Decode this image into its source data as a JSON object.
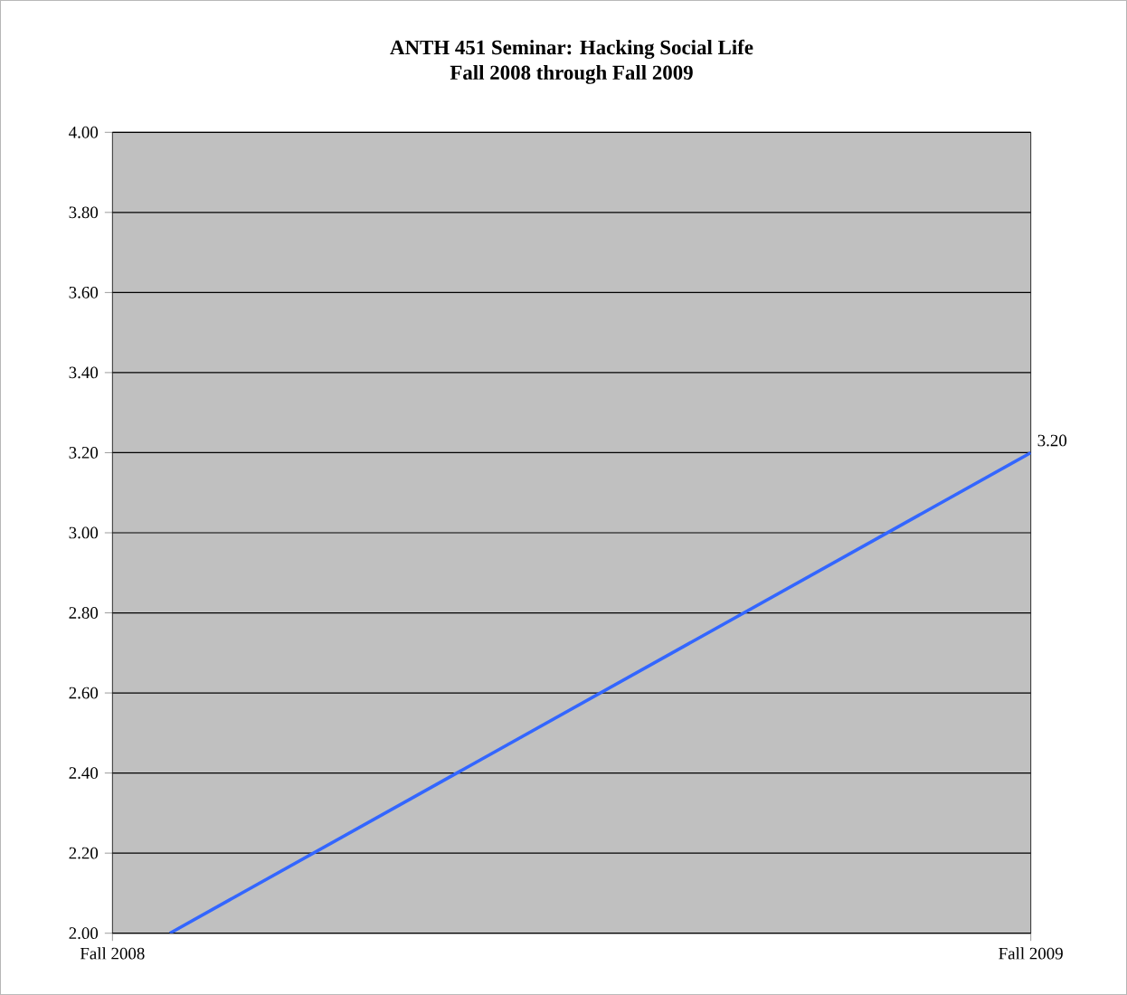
{
  "chart_data": {
    "type": "line",
    "title": "ANTH 451 Seminar: Hacking Social Life",
    "subtitle": "Fall 2008 through Fall 2009",
    "categories": [
      "Fall 2008",
      null,
      null,
      null,
      null,
      null,
      null,
      null,
      null,
      null,
      null,
      null,
      null,
      null,
      null,
      null,
      "Fall 2009"
    ],
    "ylim": [
      2,
      4
    ],
    "yticks": [
      {
        "value": 2,
        "label": "2.00"
      },
      {
        "value": 2.2,
        "label": "2.20"
      },
      {
        "value": 2.4,
        "label": "2.40"
      },
      {
        "value": 2.6,
        "label": "2.60"
      },
      {
        "value": 2.8,
        "label": "2.80"
      },
      {
        "value": 3,
        "label": "3.00"
      },
      {
        "value": 3.2,
        "label": "3.20"
      },
      {
        "value": 3.4,
        "label": "3.40"
      },
      {
        "value": 3.6,
        "label": "3.60"
      },
      {
        "value": 3.8,
        "label": "3.80"
      },
      {
        "value": 4,
        "label": "4.00"
      }
    ],
    "grid": "y",
    "series": [
      {
        "color": "#3366ff",
        "values": [
          null,
          2.0,
          null,
          null,
          null,
          null,
          null,
          null,
          null,
          null,
          null,
          null,
          null,
          null,
          null,
          null,
          3.2
        ],
        "value_labels": [
          null,
          null,
          null,
          null,
          null,
          null,
          null,
          null,
          null,
          null,
          null,
          null,
          null,
          null,
          null,
          null,
          "3.20"
        ]
      }
    ]
  }
}
